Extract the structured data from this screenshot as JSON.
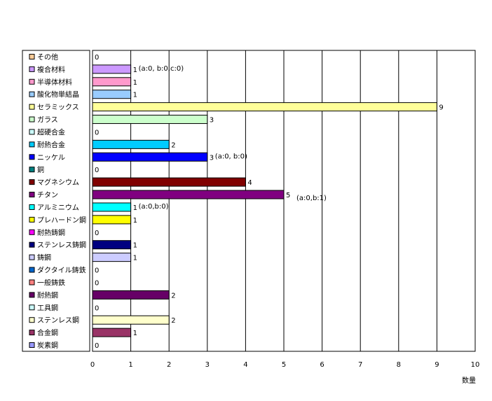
{
  "chart_data": {
    "type": "bar",
    "orientation": "horizontal",
    "categories": [
      "その他",
      "複合材料",
      "半導体材料",
      "酸化物単結晶",
      "セラミックス",
      "ガラス",
      "超硬合金",
      "耐熱合金",
      "ニッケル",
      "銅",
      "マグネシウム",
      "チタン",
      "アルミニウム",
      "プレハードン鋼",
      "耐熱鋳鋼",
      "ステンレス鋳鋼",
      "鋳鋼",
      "ダクタイル鋳鉄",
      "一般鋳鉄",
      "耐熱鋼",
      "工具鋼",
      "ステンレス鋼",
      "合金鋼",
      "炭素鋼"
    ],
    "values": [
      0,
      1,
      1,
      1,
      9,
      3,
      0,
      2,
      3,
      0,
      4,
      5,
      1,
      1,
      0,
      1,
      1,
      0,
      0,
      2,
      0,
      2,
      1,
      0
    ],
    "value_labels": [
      "0",
      "1",
      "1",
      "1",
      "9",
      "3",
      "0",
      "2",
      "3",
      "0",
      "4",
      "5",
      "1",
      "1",
      "0",
      "1",
      "1",
      "0",
      "0",
      "2",
      "0",
      "2",
      "1",
      "0"
    ],
    "annotations": [
      "",
      "(a:0, b:0,c:0)",
      "",
      "",
      "",
      "",
      "",
      "",
      "(a:0, b:0)",
      "",
      "",
      "(a:0,b:1)",
      "(a:0,b:0)",
      "",
      "",
      "",
      "",
      "",
      "",
      "",
      "",
      "",
      "",
      ""
    ],
    "colors": [
      "#FFCC99",
      "#CC99FF",
      "#FF99CC",
      "#99CCFF",
      "#FFFF99",
      "#CCFFCC",
      "#CCFFFF",
      "#00CCFF",
      "#0000FF",
      "#008080",
      "#800000",
      "#800080",
      "#00FFFF",
      "#FFFF00",
      "#FF00FF",
      "#000080",
      "#CCCCFF",
      "#0066CC",
      "#FF8080",
      "#660066",
      "#CCFFFF",
      "#FFFFCC",
      "#993366",
      "#9999FF"
    ],
    "xlim": [
      0,
      10
    ],
    "xticks": [
      "0",
      "1",
      "2",
      "3",
      "4",
      "5",
      "6",
      "7",
      "8",
      "9",
      "10"
    ],
    "xlabel": "数量",
    "ylabel": "",
    "title": "",
    "grid": true,
    "legend": "left"
  }
}
